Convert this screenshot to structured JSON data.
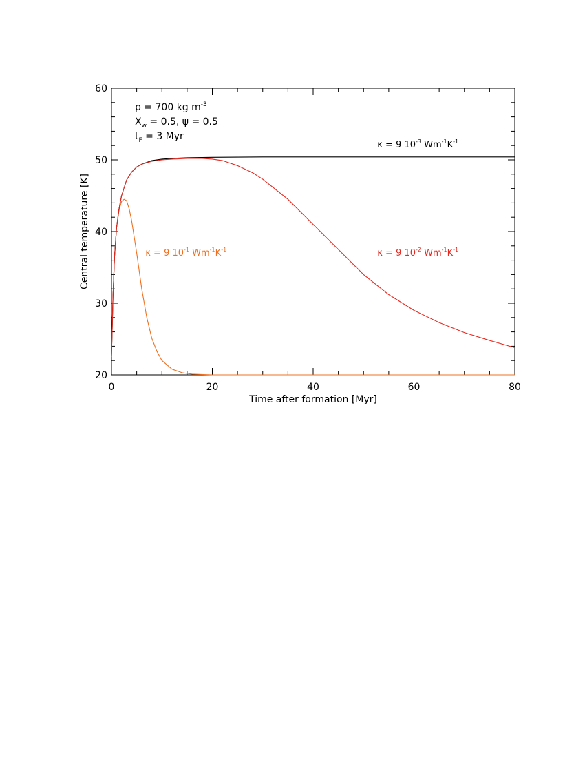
{
  "chart_data": {
    "type": "line",
    "xlabel": "Time after formation [Myr]",
    "ylabel": "Central temperature [K]",
    "xlim": [
      0,
      80
    ],
    "ylim": [
      20,
      60
    ],
    "x_ticks": [
      0,
      20,
      40,
      60,
      80
    ],
    "y_ticks": [
      20,
      30,
      40,
      50,
      60
    ],
    "x_tick_labels": [
      "0",
      "20",
      "40",
      "60",
      "80"
    ],
    "y_tick_labels": [
      "20",
      "30",
      "40",
      "50",
      "60"
    ],
    "grid": false,
    "params": [
      {
        "base": "ρ = 700 kg m",
        "sup": "-3"
      },
      {
        "text": "X_w = 0.5, ψ = 0.5"
      },
      {
        "text": "t_F = 3 Myr"
      }
    ],
    "series": [
      {
        "name": "κ = 9 10⁻³ Wm⁻¹K⁻¹",
        "color": "#000000",
        "x": [
          0,
          0.3,
          0.6,
          1,
          1.5,
          2,
          3,
          4,
          5,
          6,
          8,
          10,
          12,
          15,
          20,
          30,
          40,
          60,
          80
        ],
        "y": [
          22.5,
          31,
          36.5,
          40.5,
          43.2,
          45,
          47.2,
          48.3,
          49,
          49.4,
          49.9,
          50.1,
          50.2,
          50.3,
          50.35,
          50.4,
          50.4,
          50.4,
          50.4
        ]
      },
      {
        "name": "κ = 9 10⁻² Wm⁻¹K⁻¹",
        "color": "#e8281e",
        "x": [
          0,
          0.3,
          0.6,
          1,
          1.5,
          2,
          3,
          4,
          5,
          6,
          8,
          10,
          12,
          15,
          18,
          20,
          22,
          25,
          28,
          30,
          35,
          40,
          45,
          50,
          55,
          60,
          65,
          70,
          75,
          80
        ],
        "y": [
          22.5,
          31,
          36.5,
          40.5,
          43.2,
          45,
          47.2,
          48.3,
          49,
          49.4,
          49.8,
          50.0,
          50.1,
          50.2,
          50.2,
          50.1,
          49.9,
          49.2,
          48.2,
          47.3,
          44.5,
          41.0,
          37.5,
          34.0,
          31.2,
          29.0,
          27.3,
          25.9,
          24.8,
          23.8
        ]
      },
      {
        "name": "κ = 9 10⁻¹ Wm⁻¹K⁻¹",
        "color": "#f07020",
        "x": [
          0,
          0.3,
          0.6,
          1,
          1.5,
          2,
          2.5,
          3,
          3.5,
          4,
          5,
          6,
          7,
          8,
          9,
          10,
          12,
          14,
          16,
          20,
          25,
          30,
          40,
          50,
          60,
          70,
          80
        ],
        "y": [
          22.5,
          31,
          36.5,
          40.5,
          43,
          44.2,
          44.5,
          44.3,
          43.2,
          41.5,
          37,
          32,
          28,
          25.1,
          23.3,
          22.0,
          20.8,
          20.3,
          20.1,
          19.95,
          19.9,
          19.85,
          19.85,
          19.85,
          19.85,
          19.85,
          19.85
        ]
      }
    ],
    "annotations": [
      {
        "base": "κ = 9  10",
        "exp": "-3",
        "unit": " Wm",
        "unit_exp": "-1",
        "unit2": "K",
        "unit2_exp": "-1",
        "color": "#000000",
        "x": 50,
        "y": 52.3
      },
      {
        "base": "κ = 9  10",
        "exp": "-2",
        "unit": " Wm",
        "unit_exp": "-1",
        "unit2": "K",
        "unit2_exp": "-1",
        "color": "#e8281e",
        "x": 50,
        "y": 37.2
      },
      {
        "base": "κ = 9  10",
        "exp": "-1",
        "unit": " Wm",
        "unit_exp": "-1",
        "unit2": "K",
        "unit2_exp": "-1",
        "color": "#f07020",
        "x": 7,
        "y": 37.2
      }
    ]
  }
}
